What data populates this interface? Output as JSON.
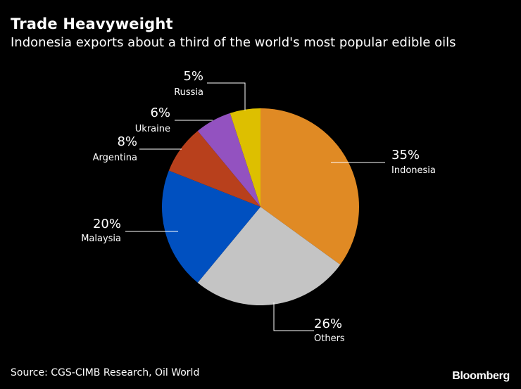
{
  "chart_data": {
    "type": "pie",
    "title": "Trade Heavyweight",
    "subtitle": "Indonesia exports about a third of the world's most popular edible oils",
    "slices": [
      {
        "label": "Indonesia",
        "value": 35,
        "display": "35%",
        "color": "#E08A24"
      },
      {
        "label": "Others",
        "value": 26,
        "display": "26%",
        "color": "#C4C4C4"
      },
      {
        "label": "Malaysia",
        "value": 20,
        "display": "20%",
        "color": "#0050C0"
      },
      {
        "label": "Argentina",
        "value": 8,
        "display": "8%",
        "color": "#B8401C"
      },
      {
        "label": "Ukraine",
        "value": 6,
        "display": "6%",
        "color": "#9352C0"
      },
      {
        "label": "Russia",
        "value": 5,
        "display": "5%",
        "color": "#DDBF00"
      }
    ]
  },
  "source": "Source: CGS-CIMB Research, Oil World",
  "brand": "Bloomberg"
}
